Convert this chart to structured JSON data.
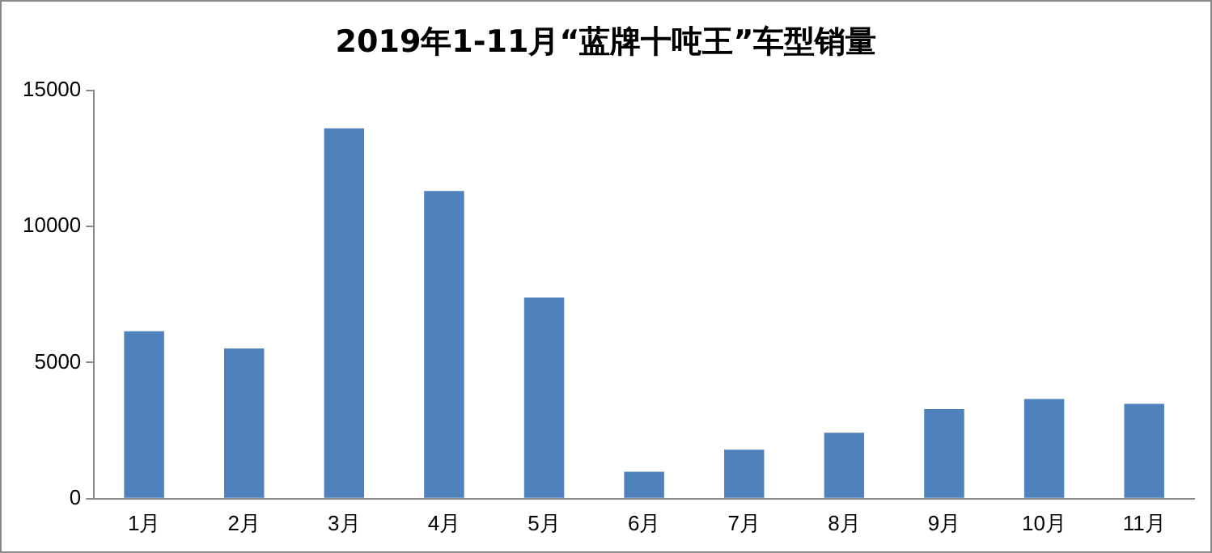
{
  "chart_data": {
    "type": "bar",
    "title": "2019年1-11月“蓝牌十吨王”车型销量",
    "categories": [
      "1月",
      "2月",
      "3月",
      "4月",
      "5月",
      "6月",
      "7月",
      "8月",
      "9月",
      "10月",
      "11月"
    ],
    "values": [
      6150,
      5520,
      13600,
      11300,
      7390,
      990,
      1800,
      2420,
      3290,
      3660,
      3480
    ],
    "color": "#4f81bd",
    "ylim": [
      0,
      15000
    ],
    "yticks": [
      0,
      5000,
      10000,
      15000
    ],
    "grid": false
  }
}
